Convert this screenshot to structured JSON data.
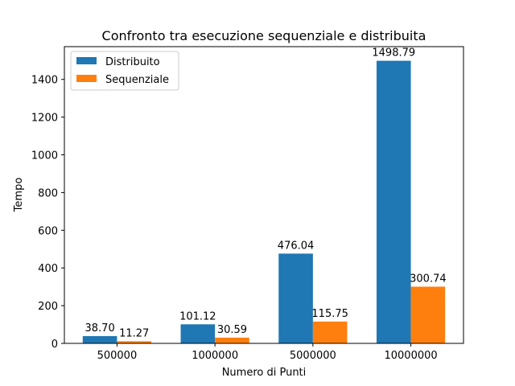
{
  "chart_data": {
    "type": "bar",
    "title": "Confronto tra esecuzione sequenziale e distribuita",
    "xlabel": "Numero di Punti",
    "ylabel": "Tempo",
    "categories": [
      "500000",
      "1000000",
      "5000000",
      "10000000"
    ],
    "series": [
      {
        "name": "Distribuito",
        "values": [
          38.7,
          101.12,
          476.04,
          1498.79
        ],
        "labels": [
          "38.70",
          "101.12",
          "476.04",
          "1498.79"
        ],
        "color": "#1f77b4"
      },
      {
        "name": "Sequenziale",
        "values": [
          11.27,
          30.59,
          115.75,
          300.74
        ],
        "labels": [
          "11.27",
          "30.59",
          "115.75",
          "300.74"
        ],
        "color": "#ff7f0e"
      }
    ],
    "ylim": [
      0,
      1573.7
    ],
    "yticks": [
      0,
      200,
      400,
      600,
      800,
      1000,
      1200,
      1400
    ],
    "grid": false,
    "legend_position": "top-left"
  }
}
